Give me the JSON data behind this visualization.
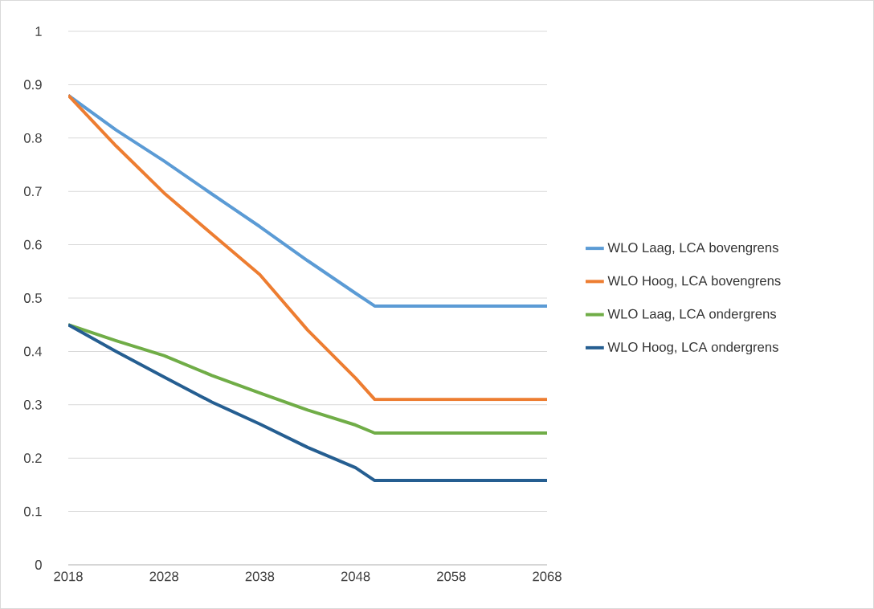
{
  "chart_data": {
    "type": "line",
    "x": [
      2018,
      2023,
      2028,
      2033,
      2038,
      2043,
      2048,
      2050,
      2068
    ],
    "xlim": [
      2018,
      2068
    ],
    "xticks": [
      2018,
      2028,
      2038,
      2048,
      2058,
      2068
    ],
    "ylim": [
      0,
      1
    ],
    "yticks": [
      0,
      0.1,
      0.2,
      0.3,
      0.4,
      0.5,
      0.6,
      0.7,
      0.8,
      0.9,
      1
    ],
    "grid": "y",
    "legend": "right",
    "marker": "none",
    "line_style": "solid",
    "series": [
      {
        "name": "WLO Laag, LCA bovengrens",
        "color": "#5b9bd5",
        "values": [
          0.88,
          0.815,
          0.757,
          0.695,
          0.634,
          0.57,
          0.509,
          0.485,
          0.485
        ]
      },
      {
        "name": "WLO Hoog, LCA bovengrens",
        "color": "#ed7d31",
        "values": [
          0.88,
          0.785,
          0.697,
          0.62,
          0.544,
          0.44,
          0.35,
          0.31,
          0.31
        ]
      },
      {
        "name": "WLO Laag, LCA ondergrens",
        "color": "#70ad47",
        "values": [
          0.45,
          0.42,
          0.392,
          0.355,
          0.322,
          0.29,
          0.262,
          0.247,
          0.247
        ]
      },
      {
        "name": "WLO Hoog, LCA ondergrens",
        "color": "#255e91",
        "values": [
          0.45,
          0.4,
          0.352,
          0.305,
          0.264,
          0.22,
          0.182,
          0.158,
          0.158
        ]
      }
    ]
  }
}
